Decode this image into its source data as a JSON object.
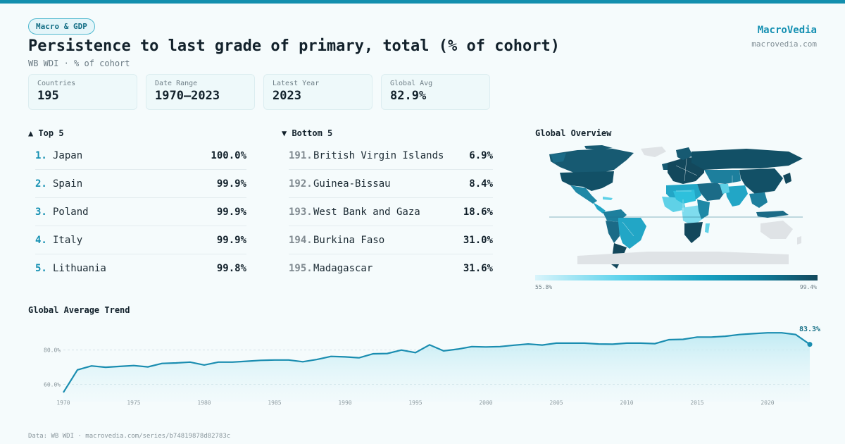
{
  "header": {
    "badge": "Macro & GDP",
    "title": "Persistence to last grade of primary, total (% of cohort)",
    "subtitle": "WB WDI · % of cohort",
    "brand": "MacroVedia",
    "brand_url": "macrovedia.com"
  },
  "stats": [
    {
      "label": "Countries",
      "value": "195"
    },
    {
      "label": "Date Range",
      "value": "1970–2023"
    },
    {
      "label": "Latest Year",
      "value": "2023"
    },
    {
      "label": "Global Avg",
      "value": "82.9%"
    }
  ],
  "top": {
    "heading": "▲ Top 5",
    "items": [
      {
        "rank": "1.",
        "name": "Japan",
        "value": "100.0%"
      },
      {
        "rank": "2.",
        "name": "Spain",
        "value": "99.9%"
      },
      {
        "rank": "3.",
        "name": "Poland",
        "value": "99.9%"
      },
      {
        "rank": "4.",
        "name": "Italy",
        "value": "99.9%"
      },
      {
        "rank": "5.",
        "name": "Lithuania",
        "value": "99.8%"
      }
    ]
  },
  "bottom": {
    "heading": "▼ Bottom 5",
    "items": [
      {
        "rank": "191.",
        "name": "British Virgin Islands",
        "value": "6.9%"
      },
      {
        "rank": "192.",
        "name": "Guinea-Bissau",
        "value": "8.4%"
      },
      {
        "rank": "193.",
        "name": "West Bank and Gaza",
        "value": "18.6%"
      },
      {
        "rank": "194.",
        "name": "Burkina Faso",
        "value": "31.0%"
      },
      {
        "rank": "195.",
        "name": "Madagascar",
        "value": "31.6%"
      }
    ]
  },
  "map": {
    "heading": "Global Overview",
    "legend_min": "55.8%",
    "legend_max": "99.4%"
  },
  "trend": {
    "heading": "Global Average Trend"
  },
  "footer": "Data: WB WDI · macrovedia.com/series/b74819878d82783c",
  "colors": {
    "accent": "#1590b2",
    "line": "#1a8db0",
    "fill": "#bfeaf3",
    "top_bar": "#138fae"
  },
  "chart_data": {
    "type": "area",
    "title": "",
    "xlabel": "",
    "ylabel": "",
    "x": [
      1970,
      1971,
      1972,
      1973,
      1974,
      1975,
      1976,
      1977,
      1978,
      1979,
      1980,
      1981,
      1982,
      1983,
      1984,
      1985,
      1986,
      1987,
      1988,
      1989,
      1990,
      1991,
      1992,
      1993,
      1994,
      1995,
      1996,
      1997,
      1998,
      1999,
      2000,
      2001,
      2002,
      2003,
      2004,
      2005,
      2006,
      2007,
      2008,
      2009,
      2010,
      2011,
      2012,
      2013,
      2014,
      2015,
      2016,
      2017,
      2018,
      2019,
      2020,
      2021,
      2022,
      2023
    ],
    "series": [
      {
        "values": [
          55.4,
          68.5,
          70.8,
          70.0,
          70.5,
          71.0,
          70.2,
          72.2,
          72.5,
          73.0,
          71.3,
          73.0,
          73.0,
          73.5,
          74.0,
          74.2,
          74.2,
          73.2,
          74.5,
          76.3,
          76.0,
          75.5,
          77.8,
          78.0,
          80.0,
          78.5,
          83.0,
          79.5,
          80.5,
          82.0,
          81.8,
          82.0,
          82.8,
          83.5,
          82.9,
          84.0,
          84.0,
          84.0,
          83.5,
          83.4,
          84.0,
          84.0,
          83.7,
          86.0,
          86.2,
          87.5,
          87.5,
          88.0,
          89.0,
          89.5,
          90.0,
          90.0,
          89.0,
          83.3
        ]
      }
    ],
    "xlim": [
      1970,
      2023
    ],
    "ylim": [
      50,
      95
    ],
    "y_ticks": [
      60,
      80
    ],
    "y_tick_labels": [
      "60.0%",
      "80.0%"
    ],
    "x_ticks": [
      1970,
      1975,
      1980,
      1985,
      1990,
      1995,
      2000,
      2005,
      2010,
      2015,
      2020
    ],
    "last_label": "83.3%",
    "grid": true,
    "legend": "none"
  }
}
